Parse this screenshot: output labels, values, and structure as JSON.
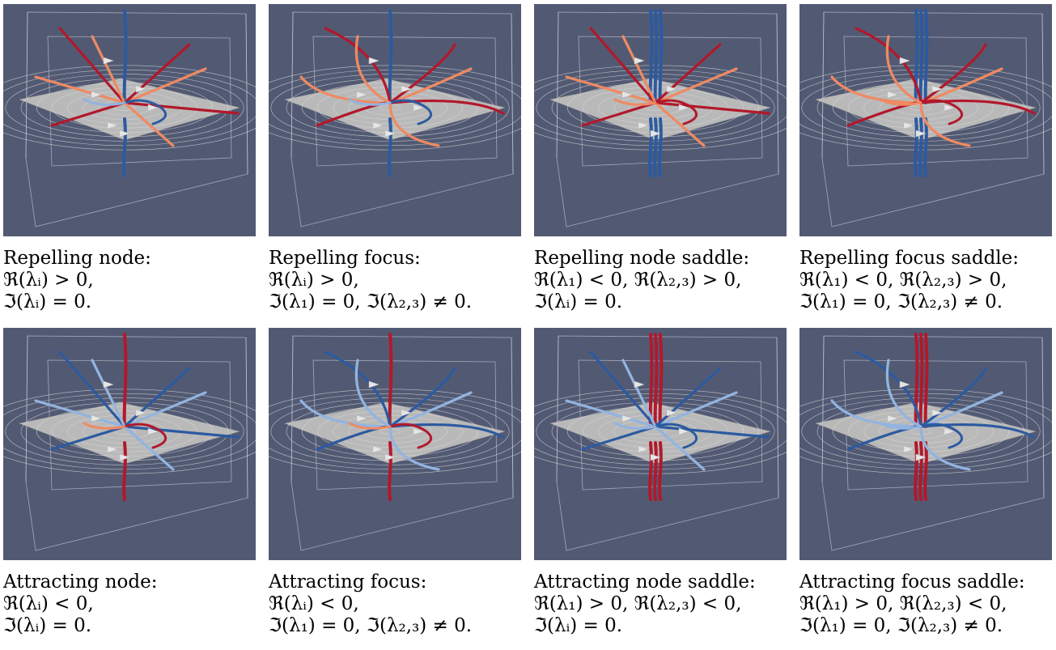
{
  "colors": {
    "background": "#525a73",
    "plane": "#b9b9b9",
    "box": "#c7cbd6",
    "repelling": "#b2182b",
    "repelling_light": "#ef8a62",
    "attracting": "#2c5aa0",
    "attracting_light": "#92b4e0",
    "arrow": "#e6e6e6"
  },
  "panels": [
    {
      "kind": "repelling",
      "type": "node",
      "lines": [
        "Repelling node:",
        "ℜ(λᵢ) > 0,",
        "ℑ(λᵢ) = 0."
      ]
    },
    {
      "kind": "repelling",
      "type": "focus",
      "lines": [
        "Repelling focus:",
        "ℜ(λᵢ) > 0,",
        "ℑ(λ₁) = 0, ℑ(λ₂,₃) ≠ 0."
      ]
    },
    {
      "kind": "repelling",
      "type": "node-saddle",
      "lines": [
        "Repelling node saddle:",
        "ℜ(λ₁) < 0, ℜ(λ₂,₃) > 0,",
        "ℑ(λᵢ) = 0."
      ]
    },
    {
      "kind": "repelling",
      "type": "focus-saddle",
      "lines": [
        "Repelling focus saddle:",
        "ℜ(λ₁) < 0, ℜ(λ₂,₃) > 0,",
        "ℑ(λ₁) = 0, ℑ(λ₂,₃) ≠ 0."
      ]
    },
    {
      "kind": "attracting",
      "type": "node",
      "lines": [
        "Attracting node:",
        "ℜ(λᵢ) < 0,",
        "ℑ(λᵢ) = 0."
      ]
    },
    {
      "kind": "attracting",
      "type": "focus",
      "lines": [
        "Attracting focus:",
        "ℜ(λᵢ) < 0,",
        "ℑ(λ₁) = 0, ℑ(λ₂,₃) ≠ 0."
      ]
    },
    {
      "kind": "attracting",
      "type": "node-saddle",
      "lines": [
        "Attracting node saddle:",
        "ℜ(λ₁) > 0, ℜ(λ₂,₃) < 0,",
        "ℑ(λᵢ) = 0."
      ]
    },
    {
      "kind": "attracting",
      "type": "focus-saddle",
      "lines": [
        "Attracting focus saddle:",
        "ℜ(λ₁) > 0, ℜ(λ₂,₃) < 0,",
        "ℑ(λ₁) = 0, ℑ(λ₂,₃) ≠ 0."
      ]
    }
  ]
}
